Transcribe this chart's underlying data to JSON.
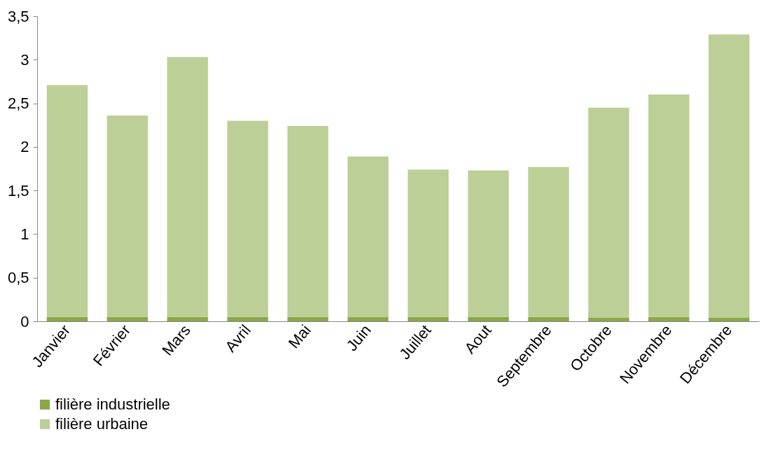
{
  "chart_data": {
    "type": "bar",
    "stacked": true,
    "categories": [
      "Janvier",
      "Février",
      "Mars",
      "Avril",
      "Mai",
      "Juin",
      "Juillet",
      "Aout",
      "Septembre",
      "Octobre",
      "Novembre",
      "Décembre"
    ],
    "series": [
      {
        "name": "filière industrielle",
        "color": "#8aa84a",
        "values": [
          0.05,
          0.05,
          0.05,
          0.05,
          0.05,
          0.05,
          0.05,
          0.05,
          0.05,
          0.04,
          0.05,
          0.04
        ]
      },
      {
        "name": "filière urbaine",
        "color": "#bccf97",
        "values": [
          2.66,
          2.31,
          2.98,
          2.25,
          2.19,
          1.84,
          1.69,
          1.68,
          1.72,
          2.41,
          2.55,
          3.25
        ]
      }
    ],
    "ylim": [
      0,
      3.5
    ],
    "yticks": [
      0,
      {
        "value": 0.5,
        "label": "0,5"
      },
      1,
      {
        "value": 1.5,
        "label": "1,5"
      },
      2,
      {
        "value": 2.5,
        "label": "2,5"
      },
      3,
      {
        "value": 3.5,
        "label": "3,5"
      }
    ],
    "grid": false,
    "legend": "bottom"
  }
}
